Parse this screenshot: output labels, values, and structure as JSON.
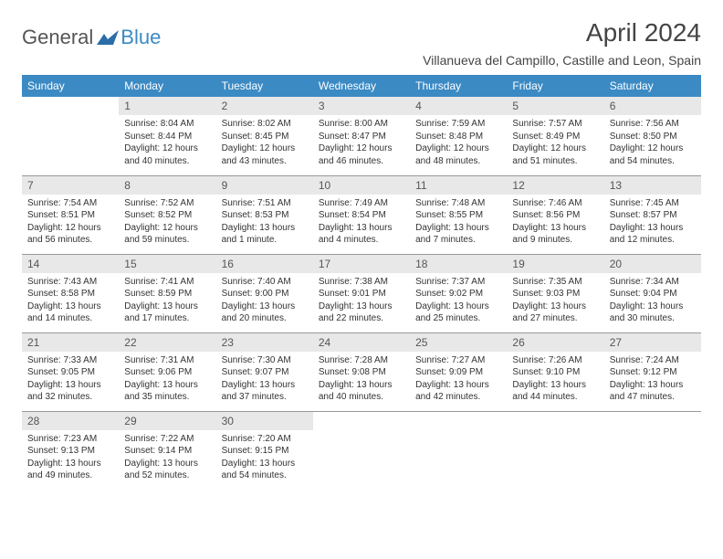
{
  "brand": {
    "general": "General",
    "blue": "Blue"
  },
  "title": "April 2024",
  "location": "Villanueva del Campillo, Castille and Leon, Spain",
  "colors": {
    "header_bg": "#3b8ac4",
    "day_bg": "#e8e8e8",
    "text": "#333333",
    "border": "#999999"
  },
  "days_of_week": [
    "Sunday",
    "Monday",
    "Tuesday",
    "Wednesday",
    "Thursday",
    "Friday",
    "Saturday"
  ],
  "weeks": [
    [
      null,
      {
        "n": "1",
        "sr": "Sunrise: 8:04 AM",
        "ss": "Sunset: 8:44 PM",
        "dl": "Daylight: 12 hours and 40 minutes."
      },
      {
        "n": "2",
        "sr": "Sunrise: 8:02 AM",
        "ss": "Sunset: 8:45 PM",
        "dl": "Daylight: 12 hours and 43 minutes."
      },
      {
        "n": "3",
        "sr": "Sunrise: 8:00 AM",
        "ss": "Sunset: 8:47 PM",
        "dl": "Daylight: 12 hours and 46 minutes."
      },
      {
        "n": "4",
        "sr": "Sunrise: 7:59 AM",
        "ss": "Sunset: 8:48 PM",
        "dl": "Daylight: 12 hours and 48 minutes."
      },
      {
        "n": "5",
        "sr": "Sunrise: 7:57 AM",
        "ss": "Sunset: 8:49 PM",
        "dl": "Daylight: 12 hours and 51 minutes."
      },
      {
        "n": "6",
        "sr": "Sunrise: 7:56 AM",
        "ss": "Sunset: 8:50 PM",
        "dl": "Daylight: 12 hours and 54 minutes."
      }
    ],
    [
      {
        "n": "7",
        "sr": "Sunrise: 7:54 AM",
        "ss": "Sunset: 8:51 PM",
        "dl": "Daylight: 12 hours and 56 minutes."
      },
      {
        "n": "8",
        "sr": "Sunrise: 7:52 AM",
        "ss": "Sunset: 8:52 PM",
        "dl": "Daylight: 12 hours and 59 minutes."
      },
      {
        "n": "9",
        "sr": "Sunrise: 7:51 AM",
        "ss": "Sunset: 8:53 PM",
        "dl": "Daylight: 13 hours and 1 minute."
      },
      {
        "n": "10",
        "sr": "Sunrise: 7:49 AM",
        "ss": "Sunset: 8:54 PM",
        "dl": "Daylight: 13 hours and 4 minutes."
      },
      {
        "n": "11",
        "sr": "Sunrise: 7:48 AM",
        "ss": "Sunset: 8:55 PM",
        "dl": "Daylight: 13 hours and 7 minutes."
      },
      {
        "n": "12",
        "sr": "Sunrise: 7:46 AM",
        "ss": "Sunset: 8:56 PM",
        "dl": "Daylight: 13 hours and 9 minutes."
      },
      {
        "n": "13",
        "sr": "Sunrise: 7:45 AM",
        "ss": "Sunset: 8:57 PM",
        "dl": "Daylight: 13 hours and 12 minutes."
      }
    ],
    [
      {
        "n": "14",
        "sr": "Sunrise: 7:43 AM",
        "ss": "Sunset: 8:58 PM",
        "dl": "Daylight: 13 hours and 14 minutes."
      },
      {
        "n": "15",
        "sr": "Sunrise: 7:41 AM",
        "ss": "Sunset: 8:59 PM",
        "dl": "Daylight: 13 hours and 17 minutes."
      },
      {
        "n": "16",
        "sr": "Sunrise: 7:40 AM",
        "ss": "Sunset: 9:00 PM",
        "dl": "Daylight: 13 hours and 20 minutes."
      },
      {
        "n": "17",
        "sr": "Sunrise: 7:38 AM",
        "ss": "Sunset: 9:01 PM",
        "dl": "Daylight: 13 hours and 22 minutes."
      },
      {
        "n": "18",
        "sr": "Sunrise: 7:37 AM",
        "ss": "Sunset: 9:02 PM",
        "dl": "Daylight: 13 hours and 25 minutes."
      },
      {
        "n": "19",
        "sr": "Sunrise: 7:35 AM",
        "ss": "Sunset: 9:03 PM",
        "dl": "Daylight: 13 hours and 27 minutes."
      },
      {
        "n": "20",
        "sr": "Sunrise: 7:34 AM",
        "ss": "Sunset: 9:04 PM",
        "dl": "Daylight: 13 hours and 30 minutes."
      }
    ],
    [
      {
        "n": "21",
        "sr": "Sunrise: 7:33 AM",
        "ss": "Sunset: 9:05 PM",
        "dl": "Daylight: 13 hours and 32 minutes."
      },
      {
        "n": "22",
        "sr": "Sunrise: 7:31 AM",
        "ss": "Sunset: 9:06 PM",
        "dl": "Daylight: 13 hours and 35 minutes."
      },
      {
        "n": "23",
        "sr": "Sunrise: 7:30 AM",
        "ss": "Sunset: 9:07 PM",
        "dl": "Daylight: 13 hours and 37 minutes."
      },
      {
        "n": "24",
        "sr": "Sunrise: 7:28 AM",
        "ss": "Sunset: 9:08 PM",
        "dl": "Daylight: 13 hours and 40 minutes."
      },
      {
        "n": "25",
        "sr": "Sunrise: 7:27 AM",
        "ss": "Sunset: 9:09 PM",
        "dl": "Daylight: 13 hours and 42 minutes."
      },
      {
        "n": "26",
        "sr": "Sunrise: 7:26 AM",
        "ss": "Sunset: 9:10 PM",
        "dl": "Daylight: 13 hours and 44 minutes."
      },
      {
        "n": "27",
        "sr": "Sunrise: 7:24 AM",
        "ss": "Sunset: 9:12 PM",
        "dl": "Daylight: 13 hours and 47 minutes."
      }
    ],
    [
      {
        "n": "28",
        "sr": "Sunrise: 7:23 AM",
        "ss": "Sunset: 9:13 PM",
        "dl": "Daylight: 13 hours and 49 minutes."
      },
      {
        "n": "29",
        "sr": "Sunrise: 7:22 AM",
        "ss": "Sunset: 9:14 PM",
        "dl": "Daylight: 13 hours and 52 minutes."
      },
      {
        "n": "30",
        "sr": "Sunrise: 7:20 AM",
        "ss": "Sunset: 9:15 PM",
        "dl": "Daylight: 13 hours and 54 minutes."
      },
      null,
      null,
      null,
      null
    ]
  ]
}
